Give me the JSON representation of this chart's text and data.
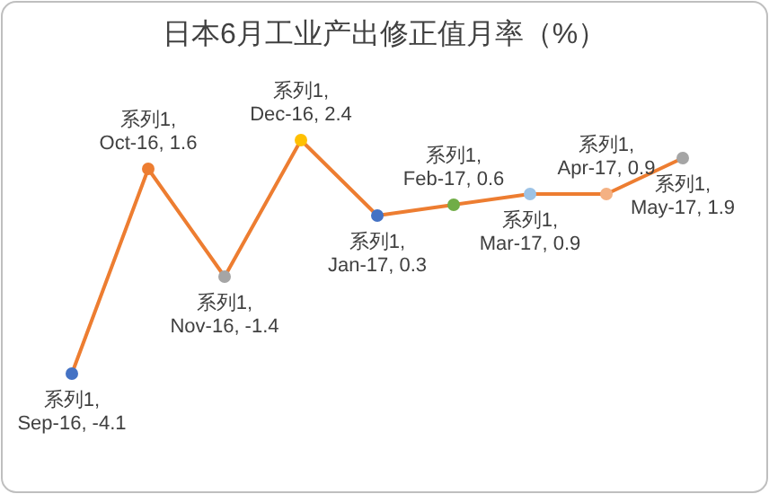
{
  "chart_data": {
    "type": "line",
    "title": "日本6月工业产出修正值月率（%）",
    "categories": [
      null,
      null,
      null,
      null,
      null,
      null,
      null,
      null,
      null
    ],
    "series": [
      {
        "color": "#ed7d31",
        "values": [
          -4.1,
          1.6,
          -1.4,
          2.4,
          0.3,
          0.6,
          0.9,
          0.9,
          1.9
        ],
        "colors": [
          "#4472c4",
          "#ed7d31",
          "#a5a5a5",
          "#ffc000",
          "#4472c4",
          "#70ad47",
          "#9dc3e6",
          "#f4b183",
          "#a5a5a5"
        ],
        "value_labels": [
          "系列1, Sep-16, -4.1",
          "系列1, Oct-16, 1.6",
          "系列1, Nov-16, -1.4",
          "系列1, Dec-16, 2.4",
          "系列1, Jan-17, 0.3",
          "系列1, Feb-17, 0.6",
          "系列1, Mar-17, 0.9",
          "系列1, Apr-17, 0.9",
          "系列1, May-17, 1.9"
        ]
      }
    ],
    "marker": "circle",
    "line_style": "solid"
  }
}
